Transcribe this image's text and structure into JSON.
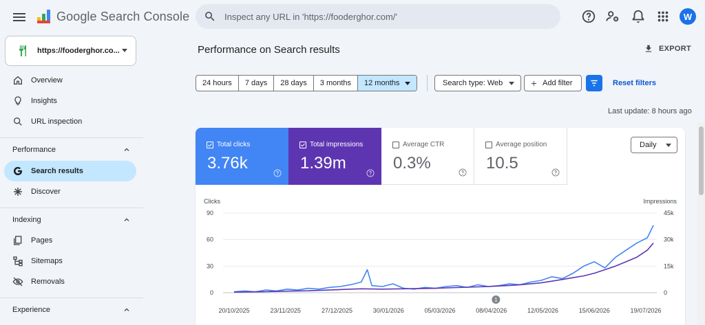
{
  "app": {
    "name": "Google Search Console"
  },
  "search": {
    "placeholder": "Inspect any URL in 'https://fooderghor.com/'"
  },
  "header": {
    "avatar_letter": "W"
  },
  "property": {
    "name": "https://fooderghor.co..."
  },
  "sidebar": {
    "overview": "Overview",
    "insights": "Insights",
    "url_inspection": "URL inspection",
    "performance_title": "Performance",
    "search_results": "Search results",
    "discover": "Discover",
    "indexing_title": "Indexing",
    "pages": "Pages",
    "sitemaps": "Sitemaps",
    "removals": "Removals",
    "experience_title": "Experience"
  },
  "main": {
    "title": "Performance on Search results",
    "export_label": "EXPORT",
    "ranges": [
      "24 hours",
      "7 days",
      "28 days",
      "3 months",
      "12 months"
    ],
    "selected_range": "12 months",
    "search_type": "Search type: Web",
    "add_filter": "Add filter",
    "reset_filters": "Reset filters",
    "last_update": "Last update: 8 hours ago"
  },
  "metrics": {
    "clicks": {
      "label": "Total clicks",
      "value": "3.76k",
      "selected": true,
      "color": "#4285f4"
    },
    "impressions": {
      "label": "Total impressions",
      "value": "1.39m",
      "selected": true,
      "color": "#5e35b1"
    },
    "ctr": {
      "label": "Average CTR",
      "value": "0.3%",
      "selected": false
    },
    "position": {
      "label": "Average position",
      "value": "10.5",
      "selected": false
    }
  },
  "granularity": "Daily",
  "chart_data": {
    "type": "line",
    "xlabel": "",
    "ylabel_left": "Clicks",
    "ylabel_right": "Impressions",
    "y_left_ticks": [
      "90",
      "60",
      "30",
      "0"
    ],
    "y_right_ticks": [
      "45k",
      "30k",
      "15k",
      "0"
    ],
    "ylim_left": [
      0,
      90
    ],
    "ylim_right": [
      0,
      45000
    ],
    "x_ticks": [
      "20/10/2025",
      "23/11/2025",
      "27/12/2025",
      "30/01/2026",
      "05/03/2026",
      "08/04/2026",
      "12/05/2026",
      "15/06/2026",
      "19/07/2026"
    ],
    "annotation": {
      "label": "1",
      "x": "11/04/2026"
    },
    "series": [
      {
        "name": "Clicks",
        "axis": "left",
        "color": "#4285f4",
        "x": [
          "20/10/2025",
          "27/10/2025",
          "03/11/2025",
          "10/11/2025",
          "17/11/2025",
          "24/11/2025",
          "01/12/2025",
          "08/12/2025",
          "15/12/2025",
          "22/12/2025",
          "29/12/2025",
          "05/01/2026",
          "12/01/2026",
          "16/01/2026",
          "19/01/2026",
          "26/01/2026",
          "02/02/2026",
          "09/02/2026",
          "16/02/2026",
          "23/02/2026",
          "02/03/2026",
          "09/03/2026",
          "16/03/2026",
          "23/03/2026",
          "30/03/2026",
          "06/04/2026",
          "13/04/2026",
          "20/04/2026",
          "27/04/2026",
          "04/05/2026",
          "11/05/2026",
          "18/05/2026",
          "25/05/2026",
          "01/06/2026",
          "08/06/2026",
          "15/06/2026",
          "22/06/2026",
          "29/06/2026",
          "06/07/2026",
          "13/07/2026",
          "20/07/2026",
          "24/07/2026"
        ],
        "values": [
          1,
          2,
          1,
          3,
          2,
          4,
          3,
          5,
          4,
          6,
          7,
          9,
          12,
          26,
          8,
          7,
          10,
          5,
          4,
          6,
          5,
          7,
          8,
          6,
          9,
          7,
          8,
          10,
          9,
          12,
          14,
          18,
          16,
          22,
          30,
          35,
          28,
          40,
          48,
          56,
          62,
          76
        ]
      },
      {
        "name": "Impressions",
        "axis": "right",
        "color": "#5e35b1",
        "x": [
          "20/10/2025",
          "27/10/2025",
          "03/11/2025",
          "10/11/2025",
          "17/11/2025",
          "24/11/2025",
          "01/12/2025",
          "08/12/2025",
          "15/12/2025",
          "22/12/2025",
          "29/12/2025",
          "05/01/2026",
          "12/01/2026",
          "19/01/2026",
          "26/01/2026",
          "02/02/2026",
          "09/02/2026",
          "16/02/2026",
          "23/02/2026",
          "02/03/2026",
          "09/03/2026",
          "16/03/2026",
          "23/03/2026",
          "30/03/2026",
          "06/04/2026",
          "13/04/2026",
          "20/04/2026",
          "27/04/2026",
          "04/05/2026",
          "11/05/2026",
          "18/05/2026",
          "25/05/2026",
          "01/06/2026",
          "08/06/2026",
          "15/06/2026",
          "22/06/2026",
          "29/06/2026",
          "06/07/2026",
          "13/07/2026",
          "20/07/2026",
          "24/07/2026"
        ],
        "values": [
          300,
          400,
          500,
          600,
          700,
          900,
          1000,
          1100,
          1300,
          1500,
          1800,
          2000,
          2200,
          2100,
          2000,
          2100,
          2200,
          2300,
          2400,
          2500,
          2700,
          2900,
          3100,
          3300,
          3500,
          3800,
          4100,
          4500,
          5000,
          5600,
          6500,
          7500,
          8500,
          9500,
          11000,
          13000,
          15000,
          17500,
          20000,
          24000,
          28000
        ]
      }
    ]
  }
}
